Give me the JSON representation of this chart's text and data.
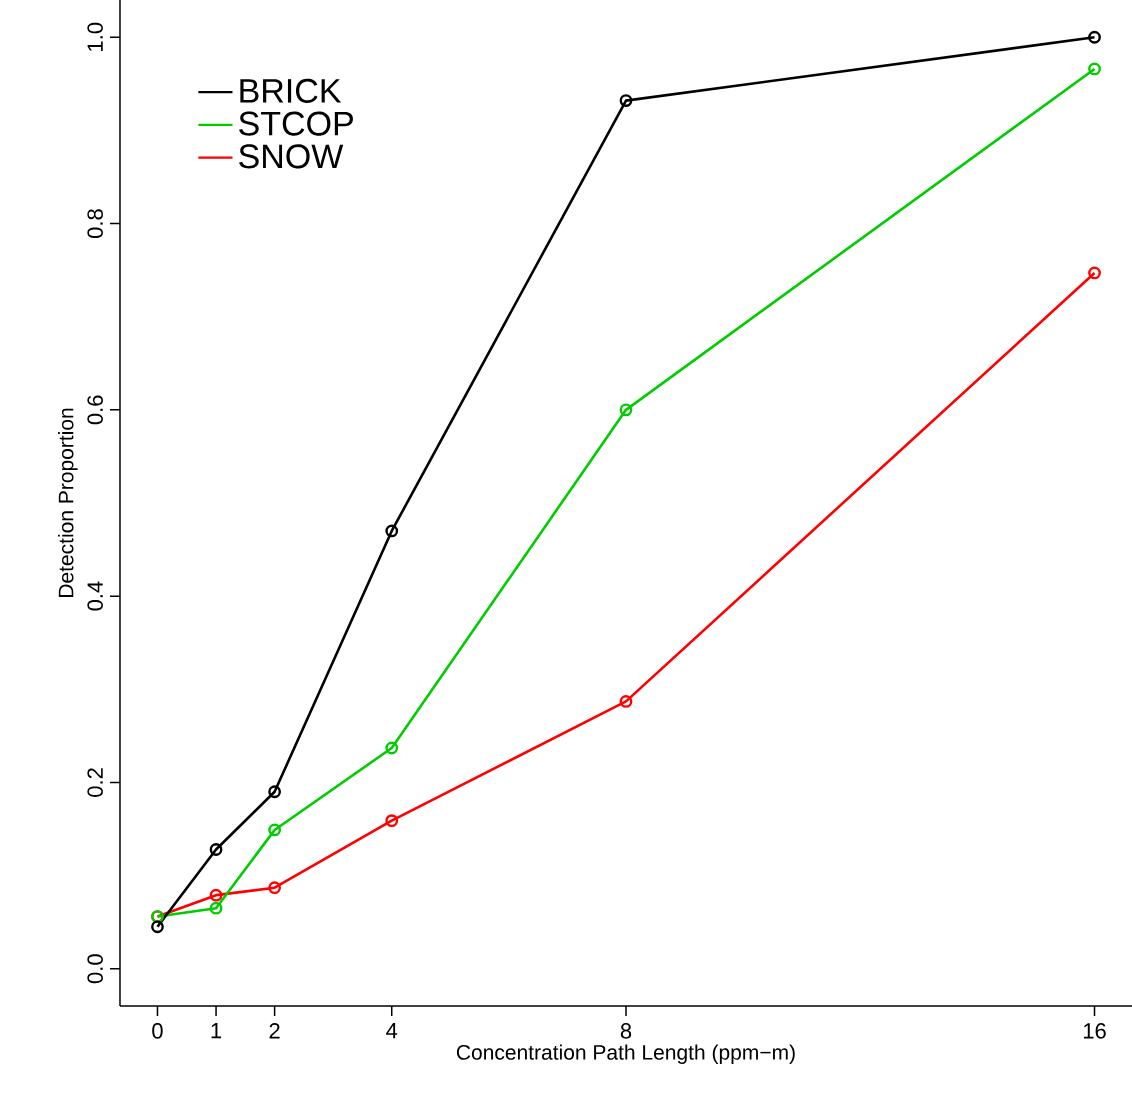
{
  "chart_data": {
    "type": "line",
    "xlabel": "Concentration Path Length (ppm−m)",
    "ylabel": "Detection Proportion",
    "x": [
      0,
      1,
      2,
      4,
      8,
      16
    ],
    "xlim": [
      -0.64,
      16.64
    ],
    "xticks": [
      0,
      1,
      2,
      4,
      8,
      16
    ],
    "ylim": [
      -0.04,
      1.04
    ],
    "yticks": [
      {
        "value": 0,
        "label": "0.0"
      },
      {
        "value": 0.2,
        "label": "0.2"
      },
      {
        "value": 0.4,
        "label": "0.4"
      },
      {
        "value": 0.6,
        "label": "0.6"
      },
      {
        "value": 0.8,
        "label": "0.8"
      },
      {
        "value": 1,
        "label": "1.0"
      }
    ],
    "series": [
      {
        "name": "BRICK",
        "color": "#000000",
        "values": [
          0.045,
          0.128,
          0.19,
          0.47,
          0.932,
          1.0
        ]
      },
      {
        "name": "STCOP",
        "color": "#00cd00",
        "values": [
          0.056,
          0.065,
          0.149,
          0.237,
          0.6,
          0.966
        ]
      },
      {
        "name": "SNOW",
        "color": "#ff0000",
        "values": [
          0.056,
          0.079,
          0.087,
          0.159,
          0.287,
          0.747
        ]
      }
    ],
    "marker": "circle",
    "line_style": "solid",
    "legend": "top left",
    "grid": false
  }
}
